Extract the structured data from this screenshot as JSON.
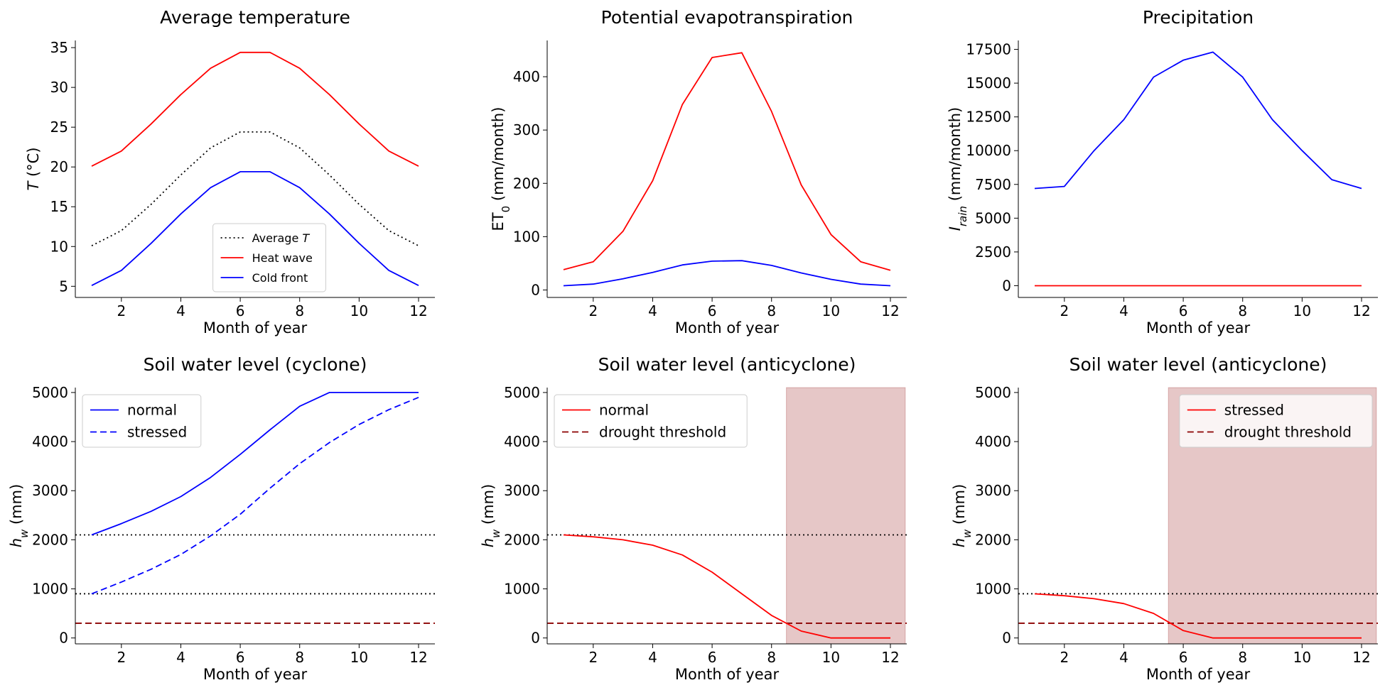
{
  "xlabel_common": "Month of year",
  "chart_data": [
    {
      "type": "line",
      "title": "Average temperature",
      "xlabel": "Month of year",
      "ylabel": "T (°C)",
      "ylabel_parts": [
        {
          "t": "T",
          "i": true
        },
        {
          "t": " (°C)"
        }
      ],
      "xlim": [
        0.45,
        12.55
      ],
      "ylim": [
        3.6,
        35.9
      ],
      "xticks": [
        2,
        4,
        6,
        8,
        10,
        12
      ],
      "yticks": [
        5,
        10,
        15,
        20,
        25,
        30,
        35
      ],
      "x": [
        1,
        2,
        3,
        4,
        5,
        6,
        7,
        8,
        9,
        10,
        11,
        12
      ],
      "series": [
        {
          "name": "Average T",
          "legend_parts": [
            {
              "t": "Average "
            },
            {
              "t": "T",
              "i": true
            }
          ],
          "color": "#000000",
          "dash": "dotted",
          "values": [
            10.1,
            12.0,
            15.3,
            19.0,
            22.4,
            24.4,
            24.4,
            22.4,
            19.0,
            15.3,
            12.0,
            10.1
          ]
        },
        {
          "name": "Heat wave",
          "color": "#ff0000",
          "dash": "solid",
          "values": [
            20.1,
            22.0,
            25.4,
            29.1,
            32.4,
            34.4,
            34.4,
            32.4,
            29.1,
            25.4,
            22.0,
            20.1
          ]
        },
        {
          "name": "Cold front",
          "color": "#0000ff",
          "dash": "solid",
          "values": [
            5.1,
            7.0,
            10.4,
            14.1,
            17.4,
            19.4,
            19.4,
            17.4,
            14.1,
            10.4,
            7.0,
            5.1
          ]
        }
      ],
      "legend": {
        "loc": "lower-center",
        "fontsize": "small"
      }
    },
    {
      "type": "line",
      "title": "Potential evapotranspiration",
      "xlabel": "Month of year",
      "ylabel": "ET0 (mm/month)",
      "ylabel_parts": [
        {
          "t": "ET"
        },
        {
          "t": "0",
          "sub": true
        },
        {
          "t": " (mm/month)"
        }
      ],
      "xlim": [
        0.45,
        12.55
      ],
      "ylim": [
        -14,
        468
      ],
      "xticks": [
        2,
        4,
        6,
        8,
        10,
        12
      ],
      "yticks": [
        0,
        100,
        200,
        300,
        400
      ],
      "x": [
        1,
        2,
        3,
        4,
        5,
        6,
        7,
        8,
        9,
        10,
        11,
        12
      ],
      "series": [
        {
          "color": "#ff0000",
          "dash": "solid",
          "values": [
            38,
            53,
            110,
            205,
            348,
            436,
            445,
            335,
            197,
            104,
            53,
            37
          ]
        },
        {
          "color": "#0000ff",
          "dash": "solid",
          "values": [
            8,
            11,
            21,
            33,
            47,
            54,
            55,
            46,
            32,
            20,
            11,
            8
          ]
        }
      ]
    },
    {
      "type": "line",
      "title": "Precipitation",
      "xlabel": "Month of year",
      "ylabel": "Irain (mm/month)",
      "ylabel_parts": [
        {
          "t": "I",
          "i": true
        },
        {
          "t": "rain",
          "i": true,
          "sub": true
        },
        {
          "t": " (mm/month)"
        }
      ],
      "xlim": [
        0.45,
        12.55
      ],
      "ylim": [
        -870,
        18160
      ],
      "xticks": [
        2,
        4,
        6,
        8,
        10,
        12
      ],
      "yticks": [
        0,
        2500,
        5000,
        7500,
        10000,
        12500,
        15000,
        17500
      ],
      "x": [
        1,
        2,
        3,
        4,
        5,
        6,
        7,
        8,
        9,
        10,
        11,
        12
      ],
      "series": [
        {
          "color": "#0000ff",
          "dash": "solid",
          "values": [
            7200,
            7350,
            10000,
            12300,
            15450,
            16700,
            17300,
            15450,
            12300,
            10000,
            7850,
            7200
          ]
        },
        {
          "color": "#ff0000",
          "dash": "solid",
          "values": [
            0,
            0,
            0,
            0,
            0,
            0,
            0,
            0,
            0,
            0,
            0,
            0
          ]
        }
      ]
    },
    {
      "type": "line",
      "title": "Soil water level (cyclone)",
      "xlabel": "Month of year",
      "ylabel": "hw (mm)",
      "ylabel_parts": [
        {
          "t": "h",
          "i": true
        },
        {
          "t": "w",
          "i": true,
          "sub": true
        },
        {
          "t": " (mm)"
        }
      ],
      "xlim": [
        0.45,
        12.55
      ],
      "ylim": [
        -120,
        5100
      ],
      "xticks": [
        2,
        4,
        6,
        8,
        10,
        12
      ],
      "yticks": [
        0,
        1000,
        2000,
        3000,
        4000,
        5000
      ],
      "x": [
        1,
        2,
        3,
        4,
        5,
        6,
        7,
        8,
        9,
        10,
        11,
        12
      ],
      "series": [
        {
          "name": "normal",
          "color": "#0000ff",
          "dash": "solid",
          "values": [
            2100,
            2330,
            2580,
            2880,
            3270,
            3740,
            4240,
            4720,
            5000,
            5000,
            5000,
            5000
          ]
        },
        {
          "name": "stressed",
          "color": "#0000ff",
          "dash": "dashed",
          "values": [
            900,
            1140,
            1400,
            1700,
            2080,
            2520,
            3050,
            3550,
            3980,
            4350,
            4650,
            4900
          ]
        }
      ],
      "hlines": [
        {
          "y": 2100,
          "color": "#000000",
          "dash": "dotted"
        },
        {
          "y": 900,
          "color": "#000000",
          "dash": "dotted"
        },
        {
          "y": 300,
          "color": "#8b0000",
          "dash": "dashed"
        }
      ],
      "legend": {
        "loc": "upper-left"
      }
    },
    {
      "type": "line",
      "title": "Soil water level (anticyclone)",
      "xlabel": "Month of year",
      "ylabel": "hw (mm)",
      "ylabel_parts": [
        {
          "t": "h",
          "i": true
        },
        {
          "t": "w",
          "i": true,
          "sub": true
        },
        {
          "t": " (mm)"
        }
      ],
      "xlim": [
        0.45,
        12.55
      ],
      "ylim": [
        -120,
        5100
      ],
      "xticks": [
        2,
        4,
        6,
        8,
        10,
        12
      ],
      "yticks": [
        0,
        1000,
        2000,
        3000,
        4000,
        5000
      ],
      "x": [
        1,
        2,
        3,
        4,
        5,
        6,
        7,
        8,
        9,
        10,
        11,
        12
      ],
      "shade": {
        "x0": 8.5,
        "x1": 12.5,
        "color": "#8b0000",
        "alpha": 0.22
      },
      "hlines": [
        {
          "y": 2100,
          "color": "#000000",
          "dash": "dotted"
        },
        {
          "y": 300,
          "color": "#8b0000",
          "dash": "dashed",
          "name": "drought threshold"
        }
      ],
      "series": [
        {
          "name": "normal",
          "color": "#ff0000",
          "dash": "solid",
          "values": [
            2100,
            2060,
            2000,
            1890,
            1690,
            1340,
            900,
            460,
            140,
            0,
            0,
            0
          ]
        }
      ],
      "legend": {
        "loc": "upper-left",
        "entries": [
          "normal",
          "drought threshold"
        ]
      }
    },
    {
      "type": "line",
      "title": "Soil water level (anticyclone)",
      "xlabel": "Month of year",
      "ylabel": "hw (mm)",
      "ylabel_parts": [
        {
          "t": "h",
          "i": true
        },
        {
          "t": "w",
          "i": true,
          "sub": true
        },
        {
          "t": " (mm)"
        }
      ],
      "xlim": [
        0.45,
        12.55
      ],
      "ylim": [
        -120,
        5100
      ],
      "xticks": [
        2,
        4,
        6,
        8,
        10,
        12
      ],
      "yticks": [
        0,
        1000,
        2000,
        3000,
        4000,
        5000
      ],
      "x": [
        1,
        2,
        3,
        4,
        5,
        6,
        7,
        8,
        9,
        10,
        11,
        12
      ],
      "shade": {
        "x0": 5.5,
        "x1": 12.5,
        "color": "#8b0000",
        "alpha": 0.22
      },
      "hlines": [
        {
          "y": 900,
          "color": "#000000",
          "dash": "dotted"
        },
        {
          "y": 300,
          "color": "#8b0000",
          "dash": "dashed",
          "name": "drought threshold"
        }
      ],
      "series": [
        {
          "name": "stressed",
          "color": "#ff0000",
          "dash": "solid",
          "values": [
            900,
            860,
            800,
            700,
            500,
            150,
            0,
            0,
            0,
            0,
            0,
            0
          ]
        }
      ],
      "legend": {
        "loc": "upper-right",
        "entries": [
          "stressed",
          "drought threshold"
        ]
      }
    }
  ]
}
